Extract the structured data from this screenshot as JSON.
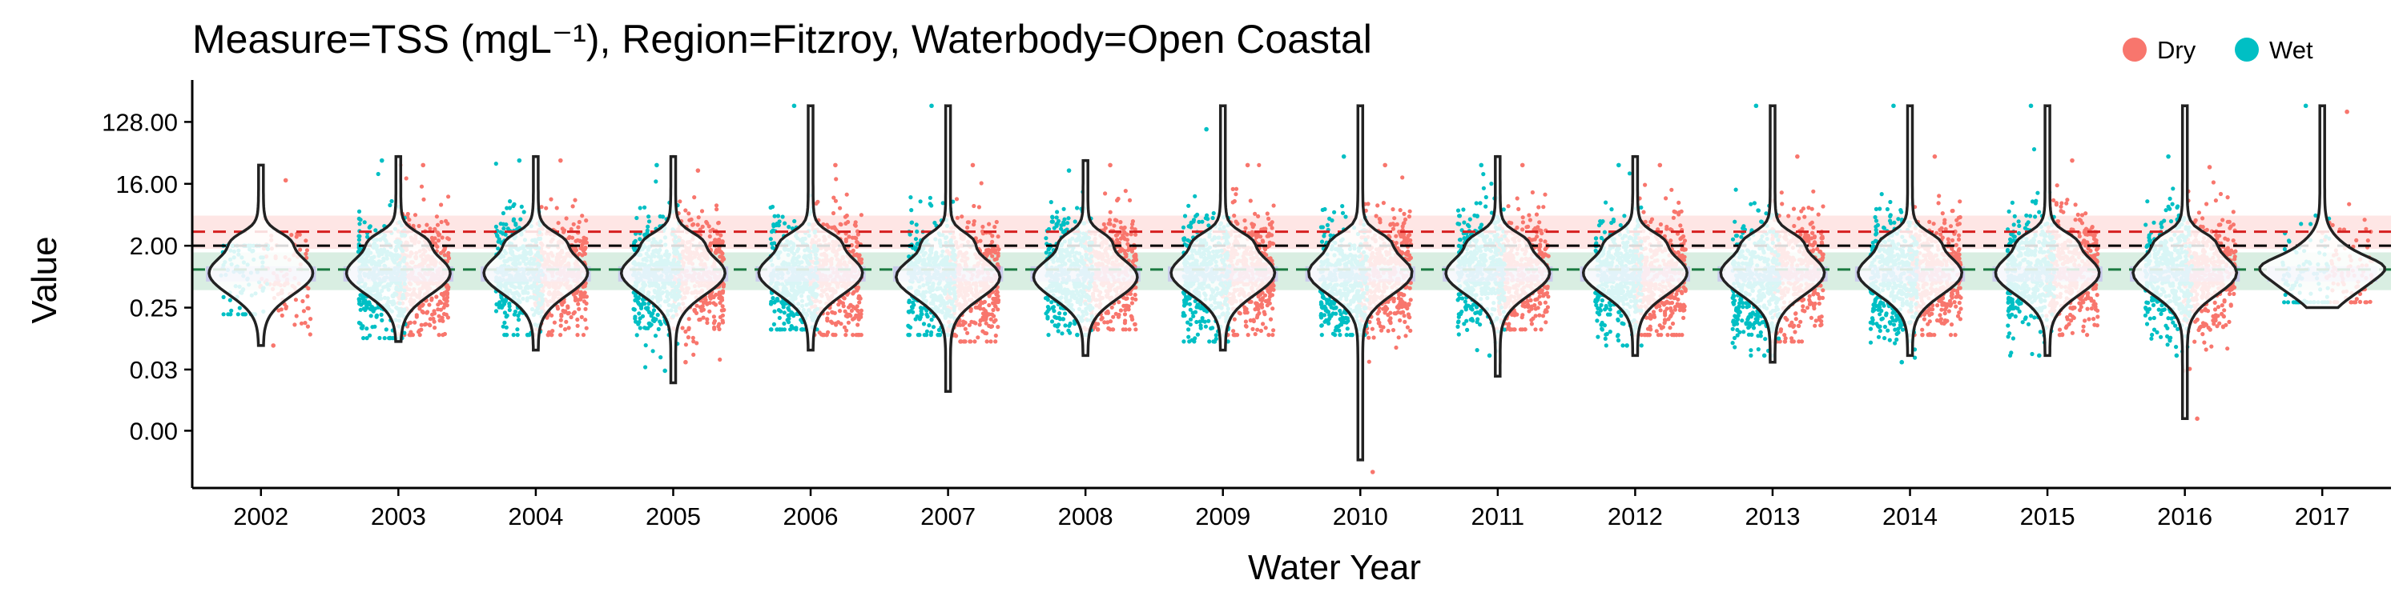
{
  "chart_data": {
    "type": "violin-scatter",
    "title": "Measure=TSS (mgL⁻¹), Region=Fitzroy, Waterbody=Open Coastal",
    "xlabel": "Water Year",
    "ylabel": "Value",
    "y_scale": "log2",
    "ylim": [
      0.001,
      400
    ],
    "x_categories": [
      "2002",
      "2003",
      "2004",
      "2005",
      "2006",
      "2007",
      "2008",
      "2009",
      "2010",
      "2011",
      "2012",
      "2013",
      "2014",
      "2015",
      "2016",
      "2017"
    ],
    "y_ticks": [
      {
        "value": 0.004,
        "label": "0.00"
      },
      {
        "value": 0.03125,
        "label": "0.03"
      },
      {
        "value": 0.25,
        "label": "0.25"
      },
      {
        "value": 2,
        "label": "2.00"
      },
      {
        "value": 16,
        "label": "16.00"
      },
      {
        "value": 128,
        "label": "128.00"
      }
    ],
    "legend": {
      "position": "top-right",
      "entries": [
        {
          "name": "Dry",
          "color": "#F8766D"
        },
        {
          "name": "Wet",
          "color": "#00BFC4"
        }
      ]
    },
    "reference_lines": [
      {
        "value": 3.2,
        "color": "#d62020",
        "band": [
          1.8,
          5.5
        ],
        "band_color": "#F8766D"
      },
      {
        "value": 2.0,
        "color": "#000000"
      },
      {
        "value": 0.9,
        "color": "#1a7a40",
        "band": [
          0.45,
          1.6
        ],
        "band_color": "#2e9e5e"
      }
    ],
    "series": [
      {
        "name": "Dry",
        "color": "#F8766D",
        "medians": [
          0.7,
          0.8,
          0.7,
          0.8,
          0.8,
          0.6,
          0.8,
          0.8,
          0.8,
          0.8,
          0.7,
          0.8,
          0.8,
          0.8,
          0.8,
          0.8
        ],
        "min": [
          0.07,
          0.1,
          0.1,
          0.04,
          0.1,
          0.08,
          0.12,
          0.1,
          0.001,
          0.12,
          0.1,
          0.08,
          0.1,
          0.1,
          0.006,
          0.3
        ],
        "max": [
          18,
          30,
          35,
          25,
          30,
          30,
          30,
          30,
          30,
          30,
          30,
          40,
          40,
          35,
          28,
          180
        ]
      },
      {
        "name": "Wet",
        "color": "#00BFC4",
        "medians": [
          0.8,
          0.7,
          0.8,
          0.7,
          0.6,
          0.7,
          0.8,
          0.7,
          0.6,
          0.9,
          0.7,
          0.6,
          0.7,
          0.8,
          0.8,
          0.8
        ],
        "min": [
          0.2,
          0.09,
          0.1,
          0.03,
          0.12,
          0.1,
          0.1,
          0.08,
          0.1,
          0.05,
          0.07,
          0.05,
          0.04,
          0.05,
          0.05,
          0.3
        ],
        "max": [
          2,
          35,
          35,
          30,
          220,
          220,
          25,
          100,
          40,
          30,
          30,
          220,
          220,
          220,
          40,
          220
        ]
      }
    ],
    "violins": {
      "medians": [
        0.8,
        0.8,
        0.8,
        0.8,
        0.8,
        0.7,
        0.7,
        0.8,
        0.8,
        0.8,
        0.8,
        0.8,
        0.8,
        0.8,
        0.8,
        0.8
      ],
      "min": [
        0.07,
        0.08,
        0.06,
        0.02,
        0.06,
        0.015,
        0.05,
        0.06,
        0.0015,
        0.025,
        0.05,
        0.04,
        0.05,
        0.05,
        0.006,
        0.25
      ],
      "max": [
        30,
        40,
        40,
        40,
        220,
        220,
        35,
        220,
        220,
        40,
        40,
        220,
        220,
        220,
        220,
        220
      ],
      "upper_bulge": [
        2.5,
        2.5,
        2.5,
        2.5,
        2.5,
        2.5,
        2.5,
        2.5,
        2.5,
        2.5,
        2.5,
        2.5,
        2.5,
        2.5,
        2.5,
        1.0
      ]
    }
  }
}
